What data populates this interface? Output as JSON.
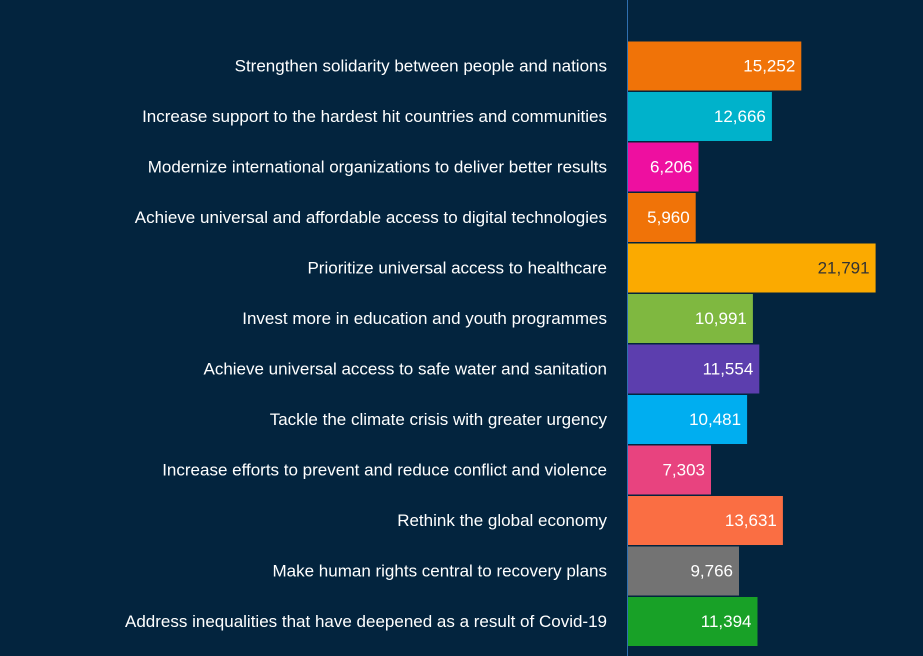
{
  "chart_data": {
    "type": "bar",
    "orientation": "horizontal",
    "title": "",
    "xlabel": "",
    "ylabel": "",
    "grid": false,
    "legend": "none",
    "xlim": [
      0,
      22000
    ],
    "background_color": "#03243e",
    "axis_color": "#2f6fb0",
    "categories": [
      "Strengthen solidarity between people and nations",
      "Increase support to the hardest hit countries and communities",
      "Modernize international organizations to deliver better results",
      "Achieve universal and affordable access to digital technologies",
      "Prioritize universal access to healthcare",
      "Invest more in education and youth programmes",
      "Achieve universal access to safe water and sanitation",
      "Tackle the climate crisis with greater urgency",
      "Increase efforts to prevent and reduce conflict and violence",
      "Rethink the global economy",
      "Make human rights central to recovery plans",
      "Address inequalities that have deepened as a result of Covid-19"
    ],
    "values": [
      15252,
      12666,
      6206,
      5960,
      21791,
      10991,
      11554,
      10481,
      7303,
      13631,
      9766,
      11394
    ],
    "value_labels": [
      "15,252",
      "12,666",
      "6,206",
      "5,960",
      "21,791",
      "10,991",
      "11,554",
      "10,481",
      "7,303",
      "13,631",
      "9,766",
      "11,394"
    ],
    "colors": [
      "#f07308",
      "#00b2cb",
      "#ee0fa0",
      "#f07308",
      "#fbaa00",
      "#7fb840",
      "#5c3eae",
      "#00aef0",
      "#e8437f",
      "#fa6e43",
      "#737373",
      "#18a127"
    ],
    "value_label_colors": [
      "#ffffff",
      "#ffffff",
      "#ffffff",
      "#ffffff",
      "#333333",
      "#ffffff",
      "#ffffff",
      "#ffffff",
      "#ffffff",
      "#ffffff",
      "#ffffff",
      "#ffffff"
    ]
  }
}
